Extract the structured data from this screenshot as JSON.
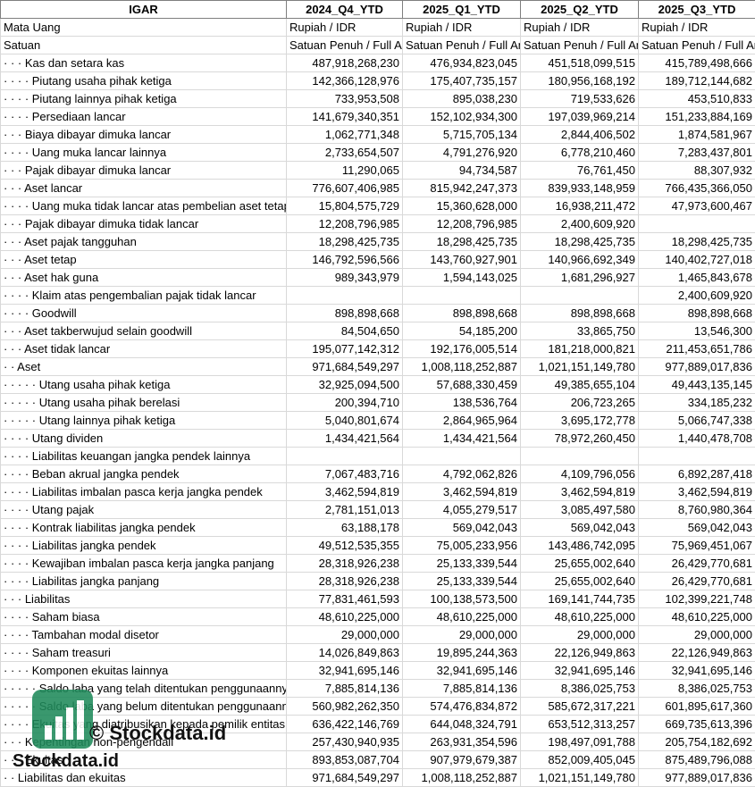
{
  "header": [
    "IGAR",
    "2024_Q4_YTD",
    "2025_Q1_YTD",
    "2025_Q2_YTD",
    "2025_Q3_YTD"
  ],
  "rows": [
    {
      "label": "Mata Uang",
      "values": [
        "Rupiah / IDR",
        "Rupiah / IDR",
        "Rupiah / IDR",
        "Rupiah / IDR"
      ]
    },
    {
      "label": "Satuan",
      "values": [
        "Satuan Penuh / Full Amount",
        "Satuan Penuh / Full Amount",
        "Satuan Penuh / Full Amount",
        "Satuan Penuh / Full Amount"
      ]
    },
    {
      "label": "· · · Kas dan setara kas",
      "values": [
        "487,918,268,230",
        "476,934,823,045",
        "451,518,099,515",
        "415,789,498,666"
      ]
    },
    {
      "label": "· · · · Piutang usaha pihak ketiga",
      "values": [
        "142,366,128,976",
        "175,407,735,157",
        "180,956,168,192",
        "189,712,144,682"
      ]
    },
    {
      "label": "· · · · Piutang lainnya pihak ketiga",
      "values": [
        "733,953,508",
        "895,038,230",
        "719,533,626",
        "453,510,833"
      ]
    },
    {
      "label": "· · · · Persediaan lancar",
      "values": [
        "141,679,340,351",
        "152,102,934,300",
        "197,039,969,214",
        "151,233,884,169"
      ]
    },
    {
      "label": "· · · Biaya dibayar dimuka lancar",
      "values": [
        "1,062,771,348",
        "5,715,705,134",
        "2,844,406,502",
        "1,874,581,967"
      ]
    },
    {
      "label": "· · · · Uang muka lancar lainnya",
      "values": [
        "2,733,654,507",
        "4,791,276,920",
        "6,778,210,460",
        "7,283,437,801"
      ]
    },
    {
      "label": "· · · Pajak dibayar dimuka lancar",
      "values": [
        "11,290,065",
        "94,734,587",
        "76,761,450",
        "88,307,932"
      ]
    },
    {
      "label": "· · · Aset lancar",
      "values": [
        "776,607,406,985",
        "815,942,247,373",
        "839,933,148,959",
        "766,435,366,050"
      ]
    },
    {
      "label": "· · · · Uang muka tidak lancar atas pembelian aset tetap",
      "values": [
        "15,804,575,729",
        "15,360,628,000",
        "16,938,211,472",
        "47,973,600,467"
      ]
    },
    {
      "label": "· · · Pajak dibayar dimuka tidak lancar",
      "values": [
        "12,208,796,985",
        "12,208,796,985",
        "2,400,609,920",
        null
      ]
    },
    {
      "label": "· · · Aset pajak tangguhan",
      "values": [
        "18,298,425,735",
        "18,298,425,735",
        "18,298,425,735",
        "18,298,425,735"
      ]
    },
    {
      "label": "· · · Aset tetap",
      "values": [
        "146,792,596,566",
        "143,760,927,901",
        "140,966,692,349",
        "140,402,727,018"
      ]
    },
    {
      "label": "· · · Aset hak guna",
      "values": [
        "989,343,979",
        "1,594,143,025",
        "1,681,296,927",
        "1,465,843,678"
      ]
    },
    {
      "label": "· · · · Klaim atas pengembalian pajak tidak lancar",
      "values": [
        null,
        null,
        null,
        "2,400,609,920"
      ]
    },
    {
      "label": "· · · · Goodwill",
      "values": [
        "898,898,668",
        "898,898,668",
        "898,898,668",
        "898,898,668"
      ]
    },
    {
      "label": "· · · Aset takberwujud selain goodwill",
      "values": [
        "84,504,650",
        "54,185,200",
        "33,865,750",
        "13,546,300"
      ]
    },
    {
      "label": "· · · Aset tidak lancar",
      "values": [
        "195,077,142,312",
        "192,176,005,514",
        "181,218,000,821",
        "211,453,651,786"
      ]
    },
    {
      "label": "· · Aset",
      "values": [
        "971,684,549,297",
        "1,008,118,252,887",
        "1,021,151,149,780",
        "977,889,017,836"
      ]
    },
    {
      "label": "· · · · · Utang usaha pihak ketiga",
      "values": [
        "32,925,094,500",
        "57,688,330,459",
        "49,385,655,104",
        "49,443,135,145"
      ]
    },
    {
      "label": "· · · · · Utang usaha pihak berelasi",
      "values": [
        "200,394,710",
        "138,536,764",
        "206,723,265",
        "334,185,232"
      ]
    },
    {
      "label": "· · · · · Utang lainnya pihak ketiga",
      "values": [
        "5,040,801,674",
        "2,864,965,964",
        "3,695,172,778",
        "5,066,747,338"
      ]
    },
    {
      "label": "· · · · Utang dividen",
      "values": [
        "1,434,421,564",
        "1,434,421,564",
        "78,972,260,450",
        "1,440,478,708"
      ]
    },
    {
      "label": "· · · · Liabilitas keuangan jangka pendek lainnya",
      "values": [
        null,
        null,
        null,
        null
      ]
    },
    {
      "label": "· · · · Beban akrual jangka pendek",
      "values": [
        "7,067,483,716",
        "4,792,062,826",
        "4,109,796,056",
        "6,892,287,418"
      ]
    },
    {
      "label": "· · · · Liabilitas imbalan pasca kerja jangka pendek",
      "values": [
        "3,462,594,819",
        "3,462,594,819",
        "3,462,594,819",
        "3,462,594,819"
      ]
    },
    {
      "label": "· · · · Utang pajak",
      "values": [
        "2,781,151,013",
        "4,055,279,517",
        "3,085,497,580",
        "8,760,980,364"
      ]
    },
    {
      "label": "· · · · Kontrak liabilitas jangka pendek",
      "values": [
        "63,188,178",
        "569,042,043",
        "569,042,043",
        "569,042,043"
      ]
    },
    {
      "label": "· · · · Liabilitas jangka pendek",
      "values": [
        "49,512,535,355",
        "75,005,233,956",
        "143,486,742,095",
        "75,969,451,067"
      ]
    },
    {
      "label": "· · · · Kewajiban imbalan pasca kerja jangka panjang",
      "values": [
        "28,318,926,238",
        "25,133,339,544",
        "25,655,002,640",
        "26,429,770,681"
      ]
    },
    {
      "label": "· · · · Liabilitas jangka panjang",
      "values": [
        "28,318,926,238",
        "25,133,339,544",
        "25,655,002,640",
        "26,429,770,681"
      ]
    },
    {
      "label": "· · · Liabilitas",
      "values": [
        "77,831,461,593",
        "100,138,573,500",
        "169,141,744,735",
        "102,399,221,748"
      ]
    },
    {
      "label": "· · · · Saham biasa",
      "values": [
        "48,610,225,000",
        "48,610,225,000",
        "48,610,225,000",
        "48,610,225,000"
      ]
    },
    {
      "label": "· · · · Tambahan modal disetor",
      "values": [
        "29,000,000",
        "29,000,000",
        "29,000,000",
        "29,000,000"
      ]
    },
    {
      "label": "· · · · Saham treasuri",
      "values": [
        "14,026,849,863",
        "19,895,244,363",
        "22,126,949,863",
        "22,126,949,863"
      ]
    },
    {
      "label": "· · · · Komponen ekuitas lainnya",
      "values": [
        "32,941,695,146",
        "32,941,695,146",
        "32,941,695,146",
        "32,941,695,146"
      ]
    },
    {
      "label": "· · · · · Saldo laba yang telah ditentukan penggunaannya",
      "values": [
        "7,885,814,136",
        "7,885,814,136",
        "8,386,025,753",
        "8,386,025,753"
      ]
    },
    {
      "label": "· · · · · Saldo laba yang belum ditentukan penggunaannya",
      "values": [
        "560,982,262,350",
        "574,476,834,872",
        "585,672,317,221",
        "601,895,617,360"
      ]
    },
    {
      "label": "· · · · Ekuitas yang diatribusikan kepada pemilik entitas induk",
      "values": [
        "636,422,146,769",
        "644,048,324,791",
        "653,512,313,257",
        "669,735,613,396"
      ]
    },
    {
      "label": "· · · Kepentingan non-pengendali",
      "values": [
        "257,430,940,935",
        "263,931,354,596",
        "198,497,091,788",
        "205,754,182,692"
      ]
    },
    {
      "label": "· · · Ekuitas",
      "values": [
        "893,853,087,704",
        "907,979,679,387",
        "852,009,405,045",
        "875,489,796,088"
      ]
    },
    {
      "label": "· · Liabilitas dan ekuitas",
      "values": [
        "971,684,549,297",
        "1,008,118,252,887",
        "1,021,151,149,780",
        "977,889,017,836"
      ]
    }
  ],
  "watermark": {
    "caption": "© Stockdata.id",
    "brand": "Stockdata.id"
  }
}
